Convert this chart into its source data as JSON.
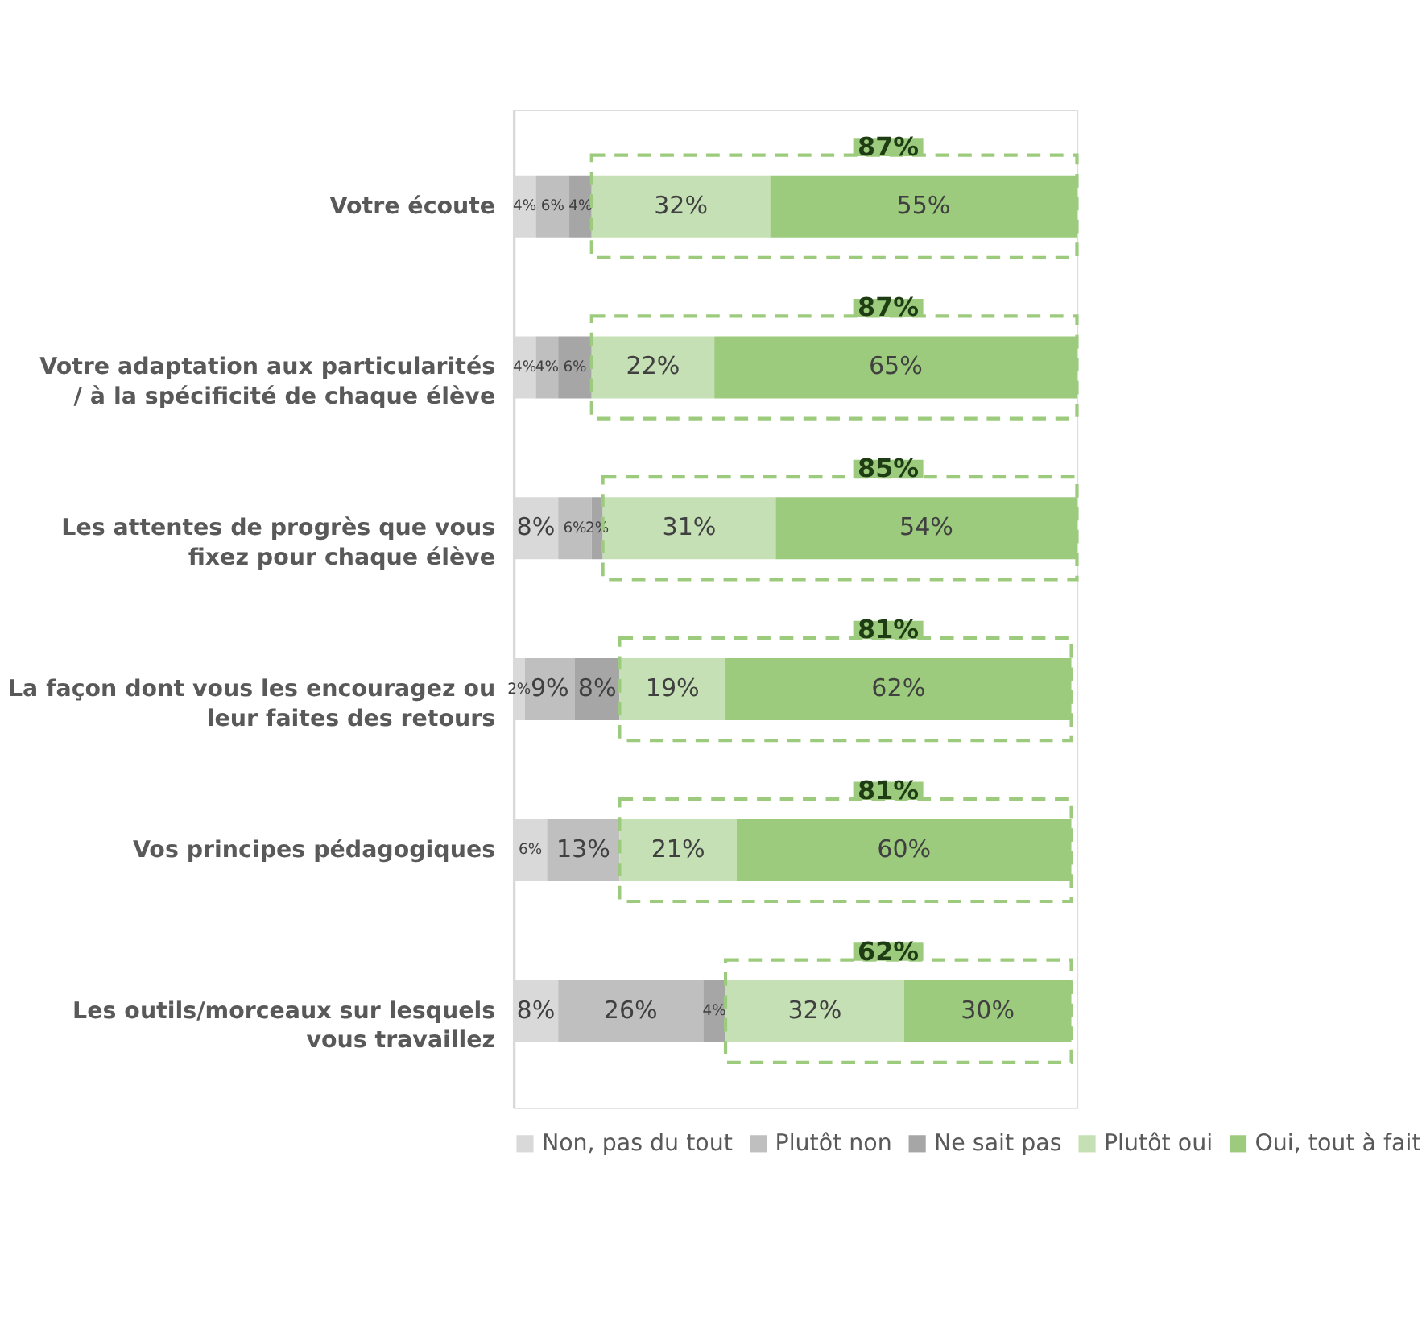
{
  "chart_data": {
    "type": "bar",
    "orientation": "horizontal",
    "stacked": true,
    "data_labels": true,
    "legend": "bottom",
    "grid": false,
    "tick_labels": "y",
    "categories": [
      "Votre écoute",
      "Votre adaptation aux particularités / à la spécificité de chaque élève",
      "Les attentes de progrès que vous fixez pour chaque élève",
      "La façon dont vous les encouragez ou leur faites des retours",
      "Vos principes pédagogiques",
      "Les outils/morceaux sur lesquels vous travaillez"
    ],
    "series": [
      {
        "name": "Non, pas du tout",
        "color": "#d9d9d9",
        "values": [
          4,
          4,
          8,
          2,
          6,
          8
        ],
        "value_labels": [
          "4%",
          "4%",
          "8%",
          "2%",
          "6%",
          "8%"
        ]
      },
      {
        "name": "Plutôt non",
        "color": "#bfbfbf",
        "values": [
          6,
          4,
          6,
          9,
          13,
          26
        ],
        "value_labels": [
          "6%",
          "4%",
          "6%",
          "9%",
          "13%",
          "26%"
        ]
      },
      {
        "name": "Ne sait pas",
        "color": "#a6a6a6",
        "values": [
          4,
          6,
          2,
          8,
          0,
          4
        ],
        "value_labels": [
          "4%",
          "6%",
          "2%",
          "8%",
          null,
          "4%"
        ]
      },
      {
        "name": "Plutôt oui",
        "color": "#c5e0b4",
        "values": [
          32,
          22,
          31,
          19,
          21,
          32
        ],
        "value_labels": [
          "32%",
          "22%",
          "31%",
          "19%",
          "21%",
          "32%"
        ]
      },
      {
        "name": "Oui, tout à fait",
        "color": "#9dcb7e",
        "values": [
          55,
          65,
          54,
          62,
          60,
          30
        ],
        "value_labels": [
          "55%",
          "65%",
          "54%",
          "62%",
          "60%",
          "30%"
        ]
      }
    ],
    "annotations": [
      "87%",
      "87%",
      "85%",
      "81%",
      "81%",
      "62%"
    ]
  }
}
